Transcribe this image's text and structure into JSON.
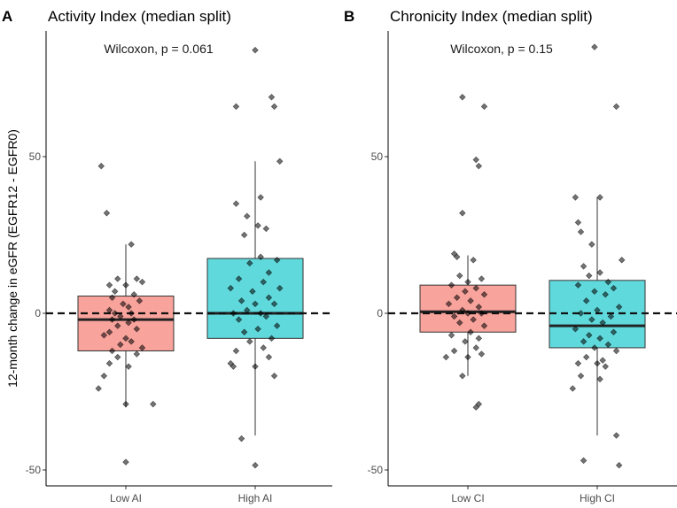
{
  "chart_data": [
    {
      "type": "boxplot",
      "panel_letter": "A",
      "title": "Activity Index (median split)",
      "annotation": "Wilcoxon, p = 0.061",
      "ylabel": "12-month change in eGFR (EGFR12 - EGFR0)",
      "xlabel": "",
      "categories": [
        "Low AI",
        "High AI"
      ],
      "yticks": [
        -50,
        0,
        50
      ],
      "ylim": [
        -55,
        87
      ],
      "reference_line": 0,
      "grid": false,
      "boxes": [
        {
          "category": "Low AI",
          "q1": -12,
          "median": -2,
          "q3": 5.5,
          "whisker_low": -30,
          "whisker_high": 22
        },
        {
          "category": "High AI",
          "q1": -8,
          "median": 0,
          "q3": 17.5,
          "whisker_low": -39,
          "whisker_high": 48.5
        }
      ],
      "points": [
        [
          [
            -9,
            47
          ],
          [
            -7,
            32
          ],
          [
            2,
            22
          ],
          [
            -3,
            11
          ],
          [
            4,
            11
          ],
          [
            6,
            10
          ],
          [
            0,
            9
          ],
          [
            -6,
            9
          ],
          [
            -4,
            7
          ],
          [
            3,
            6
          ],
          [
            -5,
            5
          ],
          [
            5,
            4
          ],
          [
            -1,
            3
          ],
          [
            1,
            2
          ],
          [
            -6,
            1
          ],
          [
            -4,
            0
          ],
          [
            2,
            0
          ],
          [
            -2,
            -1
          ],
          [
            3,
            -2
          ],
          [
            -5,
            -2
          ],
          [
            1,
            -3
          ],
          [
            -3,
            -4
          ],
          [
            4,
            -5
          ],
          [
            -6,
            -6
          ],
          [
            -8,
            -7
          ],
          [
            0,
            -8
          ],
          [
            2,
            -9
          ],
          [
            -2,
            -10
          ],
          [
            6,
            -11
          ],
          [
            -5,
            -12
          ],
          [
            4,
            -13
          ],
          [
            -3,
            -14
          ],
          [
            -6,
            -16
          ],
          [
            1,
            -17
          ],
          [
            -8,
            -20
          ],
          [
            -10,
            -24
          ],
          [
            0,
            -29
          ],
          [
            10,
            -29
          ],
          [
            0,
            -47.5
          ]
        ],
        [
          [
            0,
            84
          ],
          [
            -7,
            66
          ],
          [
            7,
            66
          ],
          [
            6,
            69
          ],
          [
            9,
            48.5
          ],
          [
            2,
            37
          ],
          [
            -7,
            35
          ],
          [
            -3,
            31
          ],
          [
            1,
            28
          ],
          [
            4,
            27
          ],
          [
            -4,
            25
          ],
          [
            2,
            18
          ],
          [
            8,
            17
          ],
          [
            -2,
            16
          ],
          [
            5,
            13
          ],
          [
            -6,
            11
          ],
          [
            3,
            10
          ],
          [
            -9,
            8
          ],
          [
            9,
            8
          ],
          [
            -1,
            7
          ],
          [
            5,
            5
          ],
          [
            -5,
            4
          ],
          [
            0,
            3
          ],
          [
            7,
            3
          ],
          [
            -3,
            1
          ],
          [
            2,
            0
          ],
          [
            -8,
            0
          ],
          [
            4,
            -1
          ],
          [
            -6,
            -2
          ],
          [
            8,
            -4
          ],
          [
            1,
            -5
          ],
          [
            -4,
            -6
          ],
          [
            6,
            -8
          ],
          [
            -2,
            -9
          ],
          [
            3,
            -11
          ],
          [
            -7,
            -12
          ],
          [
            5,
            -14
          ],
          [
            -9,
            -16
          ],
          [
            0,
            -17
          ],
          [
            -8,
            -17
          ],
          [
            7,
            -20
          ],
          [
            -5,
            -40
          ],
          [
            0,
            -48.5
          ]
        ]
      ]
    },
    {
      "type": "boxplot",
      "panel_letter": "B",
      "title": "Chronicity Index (median split)",
      "annotation": "Wilcoxon, p = 0.15",
      "xlabel": "",
      "categories": [
        "Low CI",
        "High CI"
      ],
      "yticks": [
        -50,
        0,
        50
      ],
      "ylim": [
        -55,
        87
      ],
      "reference_line": 0,
      "grid": false,
      "boxes": [
        {
          "category": "Low CI",
          "q1": -6,
          "median": 0.5,
          "q3": 9,
          "whisker_low": -20,
          "whisker_high": 18.5
        },
        {
          "category": "High CI",
          "q1": -11,
          "median": -4,
          "q3": 10.5,
          "whisker_low": -39,
          "whisker_high": 37
        }
      ],
      "points": [
        [
          [
            -2,
            69
          ],
          [
            6,
            66
          ],
          [
            3,
            49
          ],
          [
            4,
            47
          ],
          [
            -2,
            32
          ],
          [
            -5,
            19
          ],
          [
            -4,
            18
          ],
          [
            2,
            17
          ],
          [
            -3,
            12
          ],
          [
            5,
            11
          ],
          [
            0,
            10
          ],
          [
            -6,
            9
          ],
          [
            3,
            8
          ],
          [
            -1,
            7
          ],
          [
            6,
            6
          ],
          [
            -4,
            5
          ],
          [
            1,
            4
          ],
          [
            -7,
            3
          ],
          [
            4,
            2
          ],
          [
            -2,
            1
          ],
          [
            0,
            0
          ],
          [
            5,
            0
          ],
          [
            -5,
            -1
          ],
          [
            2,
            -2
          ],
          [
            -3,
            -3
          ],
          [
            6,
            -4
          ],
          [
            1,
            -6
          ],
          [
            -6,
            -7
          ],
          [
            4,
            -8
          ],
          [
            -1,
            -9
          ],
          [
            3,
            -11
          ],
          [
            -5,
            -12
          ],
          [
            5,
            -13
          ],
          [
            0,
            -14
          ],
          [
            -8,
            -14
          ],
          [
            -2,
            -20
          ],
          [
            4,
            -29
          ],
          [
            3,
            -30
          ]
        ],
        [
          [
            -1,
            85
          ],
          [
            7,
            66
          ],
          [
            -8,
            37
          ],
          [
            1,
            37
          ],
          [
            -7,
            29
          ],
          [
            -6,
            26
          ],
          [
            -2,
            22
          ],
          [
            9,
            17
          ],
          [
            -5,
            15
          ],
          [
            1,
            13
          ],
          [
            -3,
            12
          ],
          [
            4,
            10
          ],
          [
            -7,
            9
          ],
          [
            6,
            8
          ],
          [
            -1,
            7
          ],
          [
            3,
            6
          ],
          [
            -4,
            4
          ],
          [
            8,
            2
          ],
          [
            0,
            1
          ],
          [
            -6,
            0
          ],
          [
            5,
            -1
          ],
          [
            -2,
            -2
          ],
          [
            2,
            -3
          ],
          [
            -8,
            -5
          ],
          [
            6,
            -6
          ],
          [
            -3,
            -7
          ],
          [
            1,
            -8
          ],
          [
            -5,
            -9
          ],
          [
            4,
            -10
          ],
          [
            -1,
            -11
          ],
          [
            7,
            -12
          ],
          [
            -4,
            -14
          ],
          [
            2,
            -15
          ],
          [
            -7,
            -16
          ],
          [
            0,
            -16
          ],
          [
            3,
            -17
          ],
          [
            -6,
            -20
          ],
          [
            1,
            -21
          ],
          [
            -9,
            -24
          ],
          [
            7,
            -39
          ],
          [
            -5,
            -47
          ],
          [
            8,
            -48.5
          ]
        ]
      ]
    }
  ]
}
